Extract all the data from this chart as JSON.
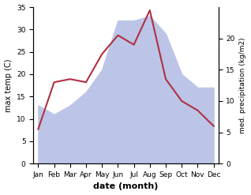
{
  "months": [
    "Jan",
    "Feb",
    "Mar",
    "Apr",
    "May",
    "Jun",
    "Jul",
    "Aug",
    "Sep",
    "Oct",
    "Nov",
    "Dec"
  ],
  "month_indices": [
    0,
    1,
    2,
    3,
    4,
    5,
    6,
    7,
    8,
    9,
    10,
    11
  ],
  "max_temp": [
    13,
    11,
    13,
    16,
    21,
    32,
    32,
    33,
    29,
    20,
    17,
    17
  ],
  "precipitation": [
    5.5,
    13,
    13.5,
    13,
    17.5,
    20.5,
    19,
    24.5,
    13.5,
    10,
    8.5,
    6
  ],
  "precip_color": "#b03040",
  "fill_color": "#bcc5e8",
  "fill_alpha": 1.0,
  "temp_ylim": [
    0,
    35
  ],
  "precip_ylim": [
    0,
    25
  ],
  "precip_right_yticks": [
    0,
    5,
    10,
    15,
    20
  ],
  "temp_yticks": [
    0,
    5,
    10,
    15,
    20,
    25,
    30,
    35
  ],
  "xlabel": "date (month)",
  "ylabel_left": "max temp (C)",
  "ylabel_right": "med. precipitation (kg/m2)",
  "bg_color": "#ffffff",
  "title_fontsize": 8,
  "label_fontsize": 7,
  "tick_fontsize": 6.5
}
